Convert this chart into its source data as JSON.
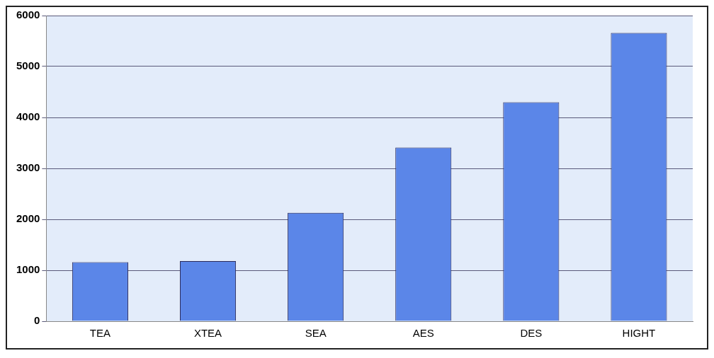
{
  "chart_data": {
    "type": "bar",
    "categories": [
      "TEA",
      "XTEA",
      "SEA",
      "AES",
      "DES",
      "HIGHT"
    ],
    "values": [
      1160,
      1180,
      2130,
      3410,
      4300,
      5660
    ],
    "color": "#5b86e8",
    "ylim": [
      0,
      6000
    ],
    "yticks": [
      0,
      1000,
      2000,
      3000,
      4000,
      5000,
      6000
    ],
    "grid": "y",
    "legend": false
  }
}
